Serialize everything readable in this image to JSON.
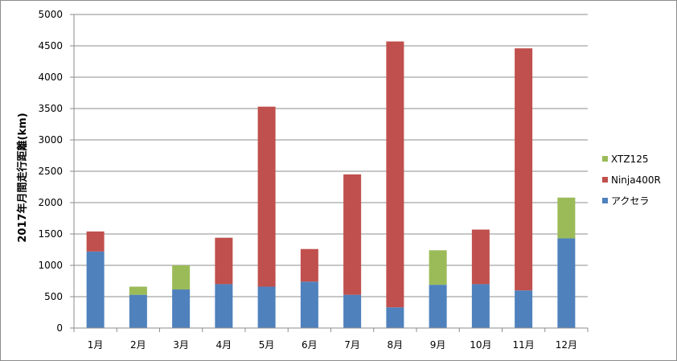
{
  "chart_data": {
    "type": "bar",
    "stacked": true,
    "title": "",
    "xlabel": "",
    "ylabel": "2017年月間走行距離(km)",
    "ylim": [
      0,
      5000
    ],
    "yticks": [
      0,
      500,
      1000,
      1500,
      2000,
      2500,
      3000,
      3500,
      4000,
      4500,
      5000
    ],
    "grid": true,
    "legend_position": "right",
    "categories": [
      "1月",
      "2月",
      "3月",
      "4月",
      "5月",
      "6月",
      "7月",
      "8月",
      "9月",
      "10月",
      "11月",
      "12月"
    ],
    "series": [
      {
        "name": "アクセラ",
        "color": "#4f81bd",
        "values": [
          1220,
          530,
          615,
          700,
          660,
          740,
          530,
          330,
          690,
          700,
          600,
          1430
        ]
      },
      {
        "name": "Ninja400R",
        "color": "#c0504d",
        "values": [
          320,
          0,
          0,
          740,
          2870,
          520,
          1920,
          4240,
          0,
          870,
          3860,
          0
        ]
      },
      {
        "name": "XTZ125",
        "color": "#9bbb59",
        "values": [
          0,
          130,
          385,
          0,
          0,
          0,
          0,
          0,
          550,
          0,
          0,
          650
        ]
      }
    ]
  }
}
